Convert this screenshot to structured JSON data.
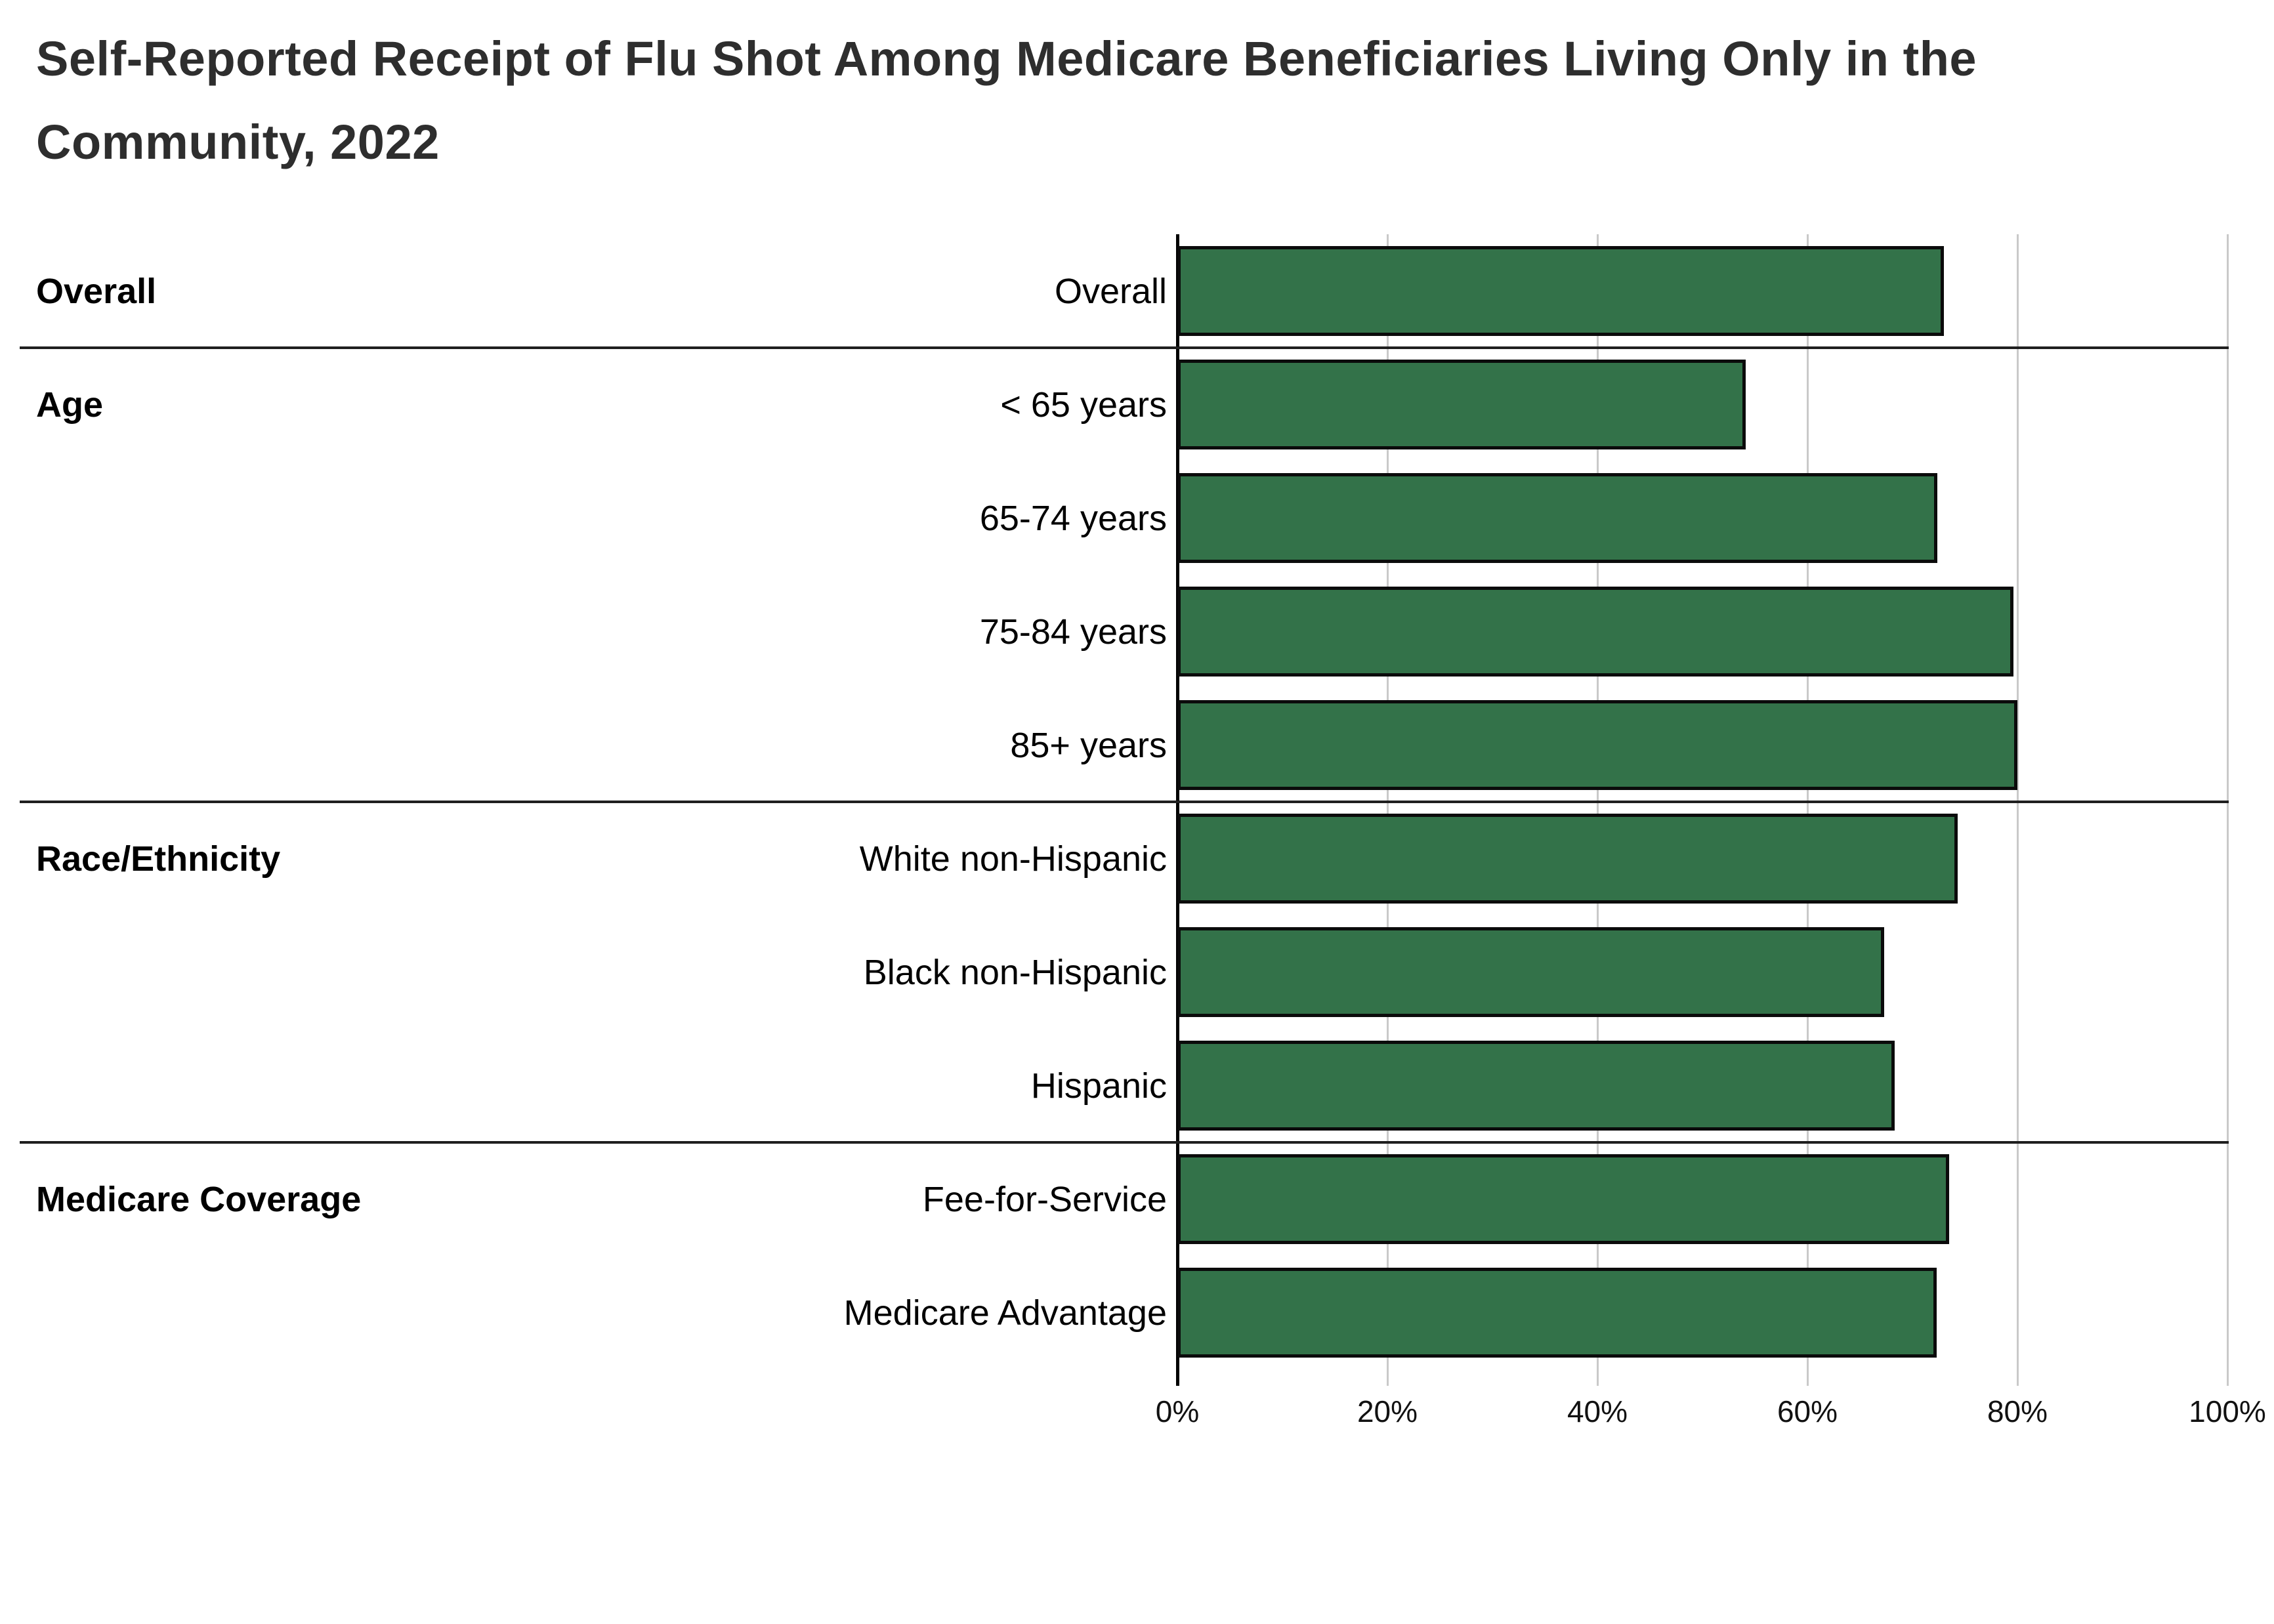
{
  "chart_data": {
    "type": "bar",
    "orientation": "horizontal",
    "title": "Self-Reported Receipt of Flu Shot Among Medicare Beneficiaries Living Only in the Community, 2022",
    "title_line1": "Self-Reported Receipt of Flu Shot Among Medicare Beneficiaries Living Only in the",
    "title_line2": "Community, 2022",
    "xlabel": "",
    "ylabel": "",
    "xlim": [
      0,
      100
    ],
    "x_ticks": [
      "0%",
      "20%",
      "40%",
      "60%",
      "80%",
      "100%"
    ],
    "x_tick_values": [
      0,
      20,
      40,
      60,
      80,
      100
    ],
    "grid": "vertical gridlines every 20%, behind bars",
    "legend": "none",
    "bar_color": "#337249",
    "bar_border_color": "#0b0b0b",
    "groups": [
      "Overall",
      "Age",
      "Race/Ethnicity",
      "Medicare Coverage"
    ],
    "rows": [
      {
        "group": "Overall",
        "label": "Overall",
        "value": 73.0
      },
      {
        "group": "Age",
        "label": "< 65 years",
        "value": 54.1
      },
      {
        "group": "Age",
        "label": "65-74 years",
        "value": 72.4
      },
      {
        "group": "Age",
        "label": "75-84 years",
        "value": 79.6
      },
      {
        "group": "Age",
        "label": "85+ years",
        "value": 80.0
      },
      {
        "group": "Race/Ethnicity",
        "label": "White non-Hispanic",
        "value": 74.3
      },
      {
        "group": "Race/Ethnicity",
        "label": "Black non-Hispanic",
        "value": 67.3
      },
      {
        "group": "Race/Ethnicity",
        "label": "Hispanic",
        "value": 68.3
      },
      {
        "group": "Medicare Coverage",
        "label": "Fee-for-Service",
        "value": 73.5
      },
      {
        "group": "Medicare Coverage",
        "label": "Medicare Advantage",
        "value": 72.3
      }
    ]
  }
}
